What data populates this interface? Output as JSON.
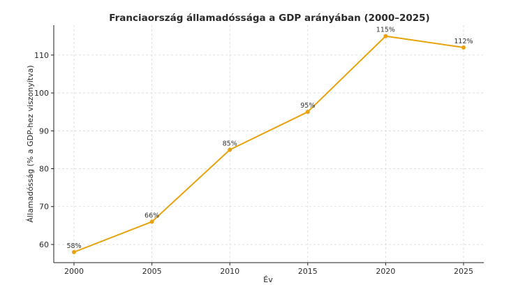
{
  "chart_data": {
    "type": "line",
    "title": "Franciaország államadóssága a GDP arányában (2000–2025)",
    "xlabel": "Év",
    "ylabel": "Államadósság (% a GDP-hez viszonyítva)",
    "x": [
      2000,
      2005,
      2010,
      2015,
      2020,
      2025
    ],
    "series": [
      {
        "name": "Államadósság",
        "values": [
          58,
          66,
          85,
          95,
          115,
          112
        ],
        "data_labels": [
          "58%",
          "66%",
          "85%",
          "95%",
          "115%",
          "112%"
        ],
        "color": "#e8a20c"
      }
    ],
    "xticks": [
      "2000",
      "2005",
      "2010",
      "2015",
      "2020",
      "2025"
    ],
    "yticks": [
      "60",
      "70",
      "80",
      "90",
      "100",
      "110"
    ],
    "xlim": [
      1998.7,
      2026.3
    ],
    "ylim": [
      55.2,
      117.9
    ],
    "grid": true
  }
}
